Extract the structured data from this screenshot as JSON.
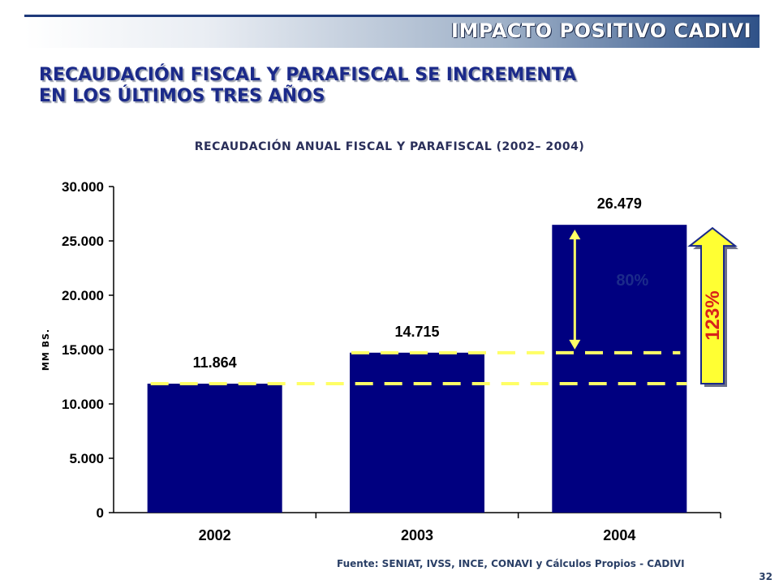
{
  "header": {
    "title": "IMPACTO POSITIVO CADIVI"
  },
  "headline": {
    "line1": "RECAUDACIÓN FISCAL Y PARAFISCAL SE INCREMENTA",
    "line2": "EN LOS ÚLTIMOS TRES AÑOS"
  },
  "chart_data": {
    "type": "bar",
    "title": "RECAUDACIÓN ANUAL FISCAL Y PARAFISCAL  (2002– 2004)",
    "xlabel": "",
    "ylabel": "MM BS.",
    "categories": [
      "2002",
      "2003",
      "2004"
    ],
    "values": [
      11864,
      14715,
      26479
    ],
    "value_labels": [
      "11.864",
      "14.715",
      "26.479"
    ],
    "ylim": [
      0,
      30000
    ],
    "yticks": [
      0,
      5000,
      10000,
      15000,
      20000,
      25000,
      30000
    ],
    "ytick_labels": [
      "0",
      "5.000",
      "10.000",
      "15.000",
      "20.000",
      "25.000",
      "30.000"
    ],
    "grid": false,
    "legend": "none",
    "bar_color": "#000080",
    "annotations": [
      {
        "text": "80%",
        "from": 14715,
        "to": 26479,
        "type": "double-arrow"
      },
      {
        "text": "123%",
        "from": 11864,
        "to": 26479,
        "type": "up-arrow",
        "color": "#ffff33"
      }
    ],
    "reference_lines": [
      11864,
      14715
    ],
    "reference_line_color": "#ffff66"
  },
  "footer": {
    "source": "Fuente: SENIAT, IVSS, INCE, CONAVI y Cálculos Propios - CADIVI",
    "page_number": "32"
  }
}
